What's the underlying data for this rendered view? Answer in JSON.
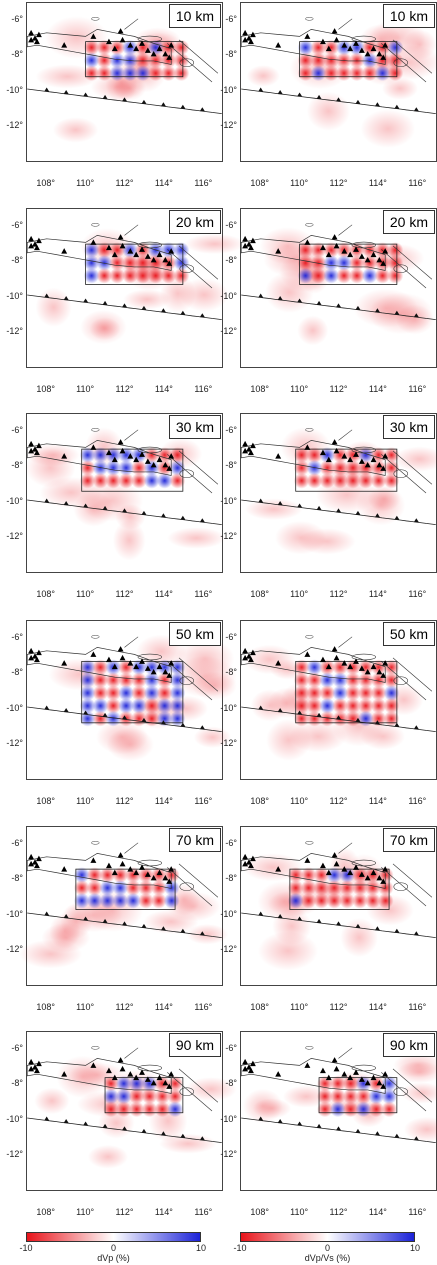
{
  "panels": [
    {
      "col": "dvp",
      "depth": "10 km"
    },
    {
      "col": "dvpvs",
      "depth": "10 km"
    },
    {
      "col": "dvp",
      "depth": "20 km"
    },
    {
      "col": "dvpvs",
      "depth": "20 km"
    },
    {
      "col": "dvp",
      "depth": "30 km"
    },
    {
      "col": "dvpvs",
      "depth": "30 km"
    },
    {
      "col": "dvp",
      "depth": "50 km"
    },
    {
      "col": "dvpvs",
      "depth": "50 km"
    },
    {
      "col": "dvp",
      "depth": "70 km"
    },
    {
      "col": "dvpvs",
      "depth": "70 km"
    },
    {
      "col": "dvp",
      "depth": "90 km"
    },
    {
      "col": "dvpvs",
      "depth": "90 km"
    }
  ],
  "axes": {
    "lat_ticks": [
      "-6°",
      "-8°",
      "-10°",
      "-12°"
    ],
    "lon_ticks": [
      "108°",
      "110°",
      "112°",
      "114°",
      "116°"
    ]
  },
  "colorbars": [
    {
      "title": "dVp (%)",
      "min": "-10",
      "mid": "0",
      "max": "10"
    },
    {
      "title": "dVp/Vs (%)",
      "min": "-10",
      "mid": "0",
      "max": "10"
    }
  ],
  "colors": {
    "negative": "#e8141b",
    "positive": "#1b22d8",
    "neutral": "#ffffff"
  }
}
